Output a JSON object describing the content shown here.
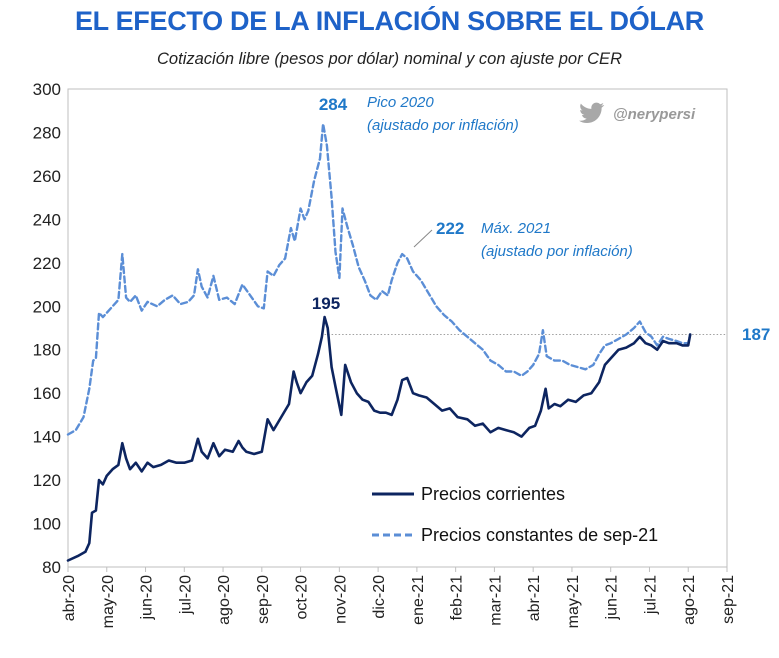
{
  "header": {
    "title": "EL EFECTO DE LA INFLACIÓN SOBRE EL DÓLAR",
    "subtitle": "Cotización libre (pesos por dólar) nominal y con ajuste por CER"
  },
  "twitter_handle": "@nerypersi",
  "colors": {
    "nominal": "#0d2560",
    "real": "#5b8ed6",
    "title": "#1e62c8",
    "annotation": "#1f78c8"
  },
  "chart_data": {
    "type": "line",
    "title": "EL EFECTO DE LA INFLACIÓN SOBRE EL DÓLAR",
    "subtitle": "Cotización libre (pesos por dólar) nominal y con ajuste por CER",
    "ylim": [
      80,
      300
    ],
    "yticks": [
      80,
      100,
      120,
      140,
      160,
      180,
      200,
      220,
      240,
      260,
      280,
      300
    ],
    "x_tick_labels": [
      "abr-20",
      "may-20",
      "jun-20",
      "jul-20",
      "ago-20",
      "sep-20",
      "oct-20",
      "nov-20",
      "dic-20",
      "ene-21",
      "feb-21",
      "mar-21",
      "abr-21",
      "may-21",
      "jun-21",
      "jul-21",
      "ago-21",
      "sep-21"
    ],
    "x_unit": "month index (0 = abr-20)",
    "series": [
      {
        "name": "Precios corrientes",
        "style": "solid",
        "points": [
          [
            0,
            83
          ],
          [
            0.25,
            85
          ],
          [
            0.45,
            87
          ],
          [
            0.55,
            91
          ],
          [
            0.62,
            105
          ],
          [
            0.72,
            106
          ],
          [
            0.8,
            120
          ],
          [
            0.9,
            118
          ],
          [
            1.0,
            122
          ],
          [
            1.15,
            125
          ],
          [
            1.3,
            127
          ],
          [
            1.4,
            137
          ],
          [
            1.5,
            130
          ],
          [
            1.6,
            125
          ],
          [
            1.75,
            128
          ],
          [
            1.9,
            124
          ],
          [
            2.05,
            128
          ],
          [
            2.2,
            126
          ],
          [
            2.4,
            127
          ],
          [
            2.6,
            129
          ],
          [
            2.8,
            128
          ],
          [
            3.0,
            128
          ],
          [
            3.2,
            129
          ],
          [
            3.35,
            139
          ],
          [
            3.45,
            133
          ],
          [
            3.6,
            130
          ],
          [
            3.75,
            137
          ],
          [
            3.9,
            131
          ],
          [
            4.05,
            134
          ],
          [
            4.25,
            133
          ],
          [
            4.4,
            138
          ],
          [
            4.5,
            135
          ],
          [
            4.6,
            133
          ],
          [
            4.8,
            132
          ],
          [
            5.0,
            133
          ],
          [
            5.15,
            148
          ],
          [
            5.3,
            143
          ],
          [
            5.5,
            149
          ],
          [
            5.7,
            155
          ],
          [
            5.82,
            170
          ],
          [
            5.9,
            165
          ],
          [
            6.0,
            160
          ],
          [
            6.15,
            165
          ],
          [
            6.3,
            168
          ],
          [
            6.45,
            178
          ],
          [
            6.55,
            186
          ],
          [
            6.62,
            195
          ],
          [
            6.7,
            190
          ],
          [
            6.8,
            172
          ],
          [
            6.9,
            163
          ],
          [
            7.05,
            150
          ],
          [
            7.15,
            173
          ],
          [
            7.3,
            165
          ],
          [
            7.45,
            160
          ],
          [
            7.6,
            157
          ],
          [
            7.75,
            156
          ],
          [
            7.9,
            152
          ],
          [
            8.05,
            151
          ],
          [
            8.2,
            151
          ],
          [
            8.35,
            150
          ],
          [
            8.5,
            157
          ],
          [
            8.62,
            166
          ],
          [
            8.75,
            167
          ],
          [
            8.9,
            160
          ],
          [
            9.05,
            159
          ],
          [
            9.25,
            158
          ],
          [
            9.45,
            155
          ],
          [
            9.65,
            152
          ],
          [
            9.85,
            153
          ],
          [
            10.05,
            149
          ],
          [
            10.3,
            148
          ],
          [
            10.5,
            145
          ],
          [
            10.7,
            146
          ],
          [
            10.9,
            142
          ],
          [
            11.1,
            144
          ],
          [
            11.3,
            143
          ],
          [
            11.5,
            142
          ],
          [
            11.7,
            140
          ],
          [
            11.9,
            144
          ],
          [
            12.05,
            145
          ],
          [
            12.2,
            152
          ],
          [
            12.32,
            162
          ],
          [
            12.4,
            153
          ],
          [
            12.55,
            155
          ],
          [
            12.7,
            154
          ],
          [
            12.9,
            157
          ],
          [
            13.1,
            156
          ],
          [
            13.3,
            159
          ],
          [
            13.5,
            160
          ],
          [
            13.7,
            165
          ],
          [
            13.85,
            173
          ],
          [
            14.0,
            176
          ],
          [
            14.2,
            180
          ],
          [
            14.4,
            181
          ],
          [
            14.6,
            183
          ],
          [
            14.75,
            186
          ],
          [
            14.9,
            183
          ],
          [
            15.05,
            182
          ],
          [
            15.2,
            180
          ],
          [
            15.35,
            184
          ],
          [
            15.5,
            183
          ],
          [
            15.7,
            183
          ],
          [
            15.85,
            182
          ],
          [
            16.0,
            182
          ],
          [
            16.05,
            187
          ]
        ]
      },
      {
        "name": "Precios constantes de sep-21",
        "style": "dashed",
        "points": [
          [
            0,
            141
          ],
          [
            0.2,
            143
          ],
          [
            0.4,
            149
          ],
          [
            0.55,
            162
          ],
          [
            0.65,
            175
          ],
          [
            0.72,
            176
          ],
          [
            0.8,
            197
          ],
          [
            0.9,
            195
          ],
          [
            1.0,
            197
          ],
          [
            1.15,
            200
          ],
          [
            1.3,
            203
          ],
          [
            1.4,
            224
          ],
          [
            1.5,
            204
          ],
          [
            1.6,
            202
          ],
          [
            1.75,
            205
          ],
          [
            1.9,
            198
          ],
          [
            2.05,
            202
          ],
          [
            2.3,
            200
          ],
          [
            2.5,
            203
          ],
          [
            2.7,
            205
          ],
          [
            2.9,
            201
          ],
          [
            3.1,
            202
          ],
          [
            3.25,
            205
          ],
          [
            3.35,
            217
          ],
          [
            3.45,
            209
          ],
          [
            3.6,
            204
          ],
          [
            3.75,
            214
          ],
          [
            3.9,
            203
          ],
          [
            4.1,
            204
          ],
          [
            4.3,
            201
          ],
          [
            4.5,
            210
          ],
          [
            4.7,
            205
          ],
          [
            4.9,
            200
          ],
          [
            5.05,
            199
          ],
          [
            5.15,
            216
          ],
          [
            5.3,
            214
          ],
          [
            5.45,
            219
          ],
          [
            5.6,
            222
          ],
          [
            5.75,
            236
          ],
          [
            5.85,
            230
          ],
          [
            6.0,
            245
          ],
          [
            6.1,
            240
          ],
          [
            6.2,
            244
          ],
          [
            6.35,
            258
          ],
          [
            6.5,
            268
          ],
          [
            6.58,
            284
          ],
          [
            6.68,
            274
          ],
          [
            6.8,
            250
          ],
          [
            6.9,
            225
          ],
          [
            7.0,
            213
          ],
          [
            7.08,
            245
          ],
          [
            7.2,
            237
          ],
          [
            7.35,
            228
          ],
          [
            7.5,
            218
          ],
          [
            7.65,
            212
          ],
          [
            7.8,
            205
          ],
          [
            7.95,
            203
          ],
          [
            8.1,
            207
          ],
          [
            8.25,
            205
          ],
          [
            8.35,
            212
          ],
          [
            8.5,
            220
          ],
          [
            8.62,
            224
          ],
          [
            8.75,
            222
          ],
          [
            8.9,
            216
          ],
          [
            9.1,
            212
          ],
          [
            9.3,
            206
          ],
          [
            9.5,
            200
          ],
          [
            9.7,
            196
          ],
          [
            9.9,
            193
          ],
          [
            10.1,
            189
          ],
          [
            10.3,
            186
          ],
          [
            10.5,
            183
          ],
          [
            10.7,
            180
          ],
          [
            10.9,
            175
          ],
          [
            11.1,
            173
          ],
          [
            11.3,
            170
          ],
          [
            11.5,
            170
          ],
          [
            11.7,
            168
          ],
          [
            11.85,
            170
          ],
          [
            12.0,
            173
          ],
          [
            12.15,
            178
          ],
          [
            12.25,
            189
          ],
          [
            12.35,
            177
          ],
          [
            12.55,
            175
          ],
          [
            12.75,
            175
          ],
          [
            12.95,
            173
          ],
          [
            13.15,
            172
          ],
          [
            13.35,
            171
          ],
          [
            13.55,
            173
          ],
          [
            13.7,
            178
          ],
          [
            13.85,
            182
          ],
          [
            14.0,
            183
          ],
          [
            14.2,
            185
          ],
          [
            14.4,
            187
          ],
          [
            14.6,
            190
          ],
          [
            14.75,
            193
          ],
          [
            14.9,
            188
          ],
          [
            15.05,
            186
          ],
          [
            15.2,
            182
          ],
          [
            15.35,
            186
          ],
          [
            15.5,
            185
          ],
          [
            15.7,
            184
          ],
          [
            15.85,
            183
          ],
          [
            16.0,
            183
          ],
          [
            16.05,
            187
          ]
        ]
      }
    ],
    "annotations": [
      {
        "value": "284",
        "text_line1": "Pico 2020",
        "text_line2": "(ajustado por inflación)"
      },
      {
        "value": "222",
        "text_line1": "Máx. 2021",
        "text_line2": "(ajustado por inflación)"
      },
      {
        "value": "195"
      },
      {
        "value": "187"
      }
    ],
    "reference_line_value": 187,
    "legend": {
      "position": "bottom-right",
      "entries": [
        "Precios corrientes",
        "Precios constantes de sep-21"
      ]
    }
  }
}
